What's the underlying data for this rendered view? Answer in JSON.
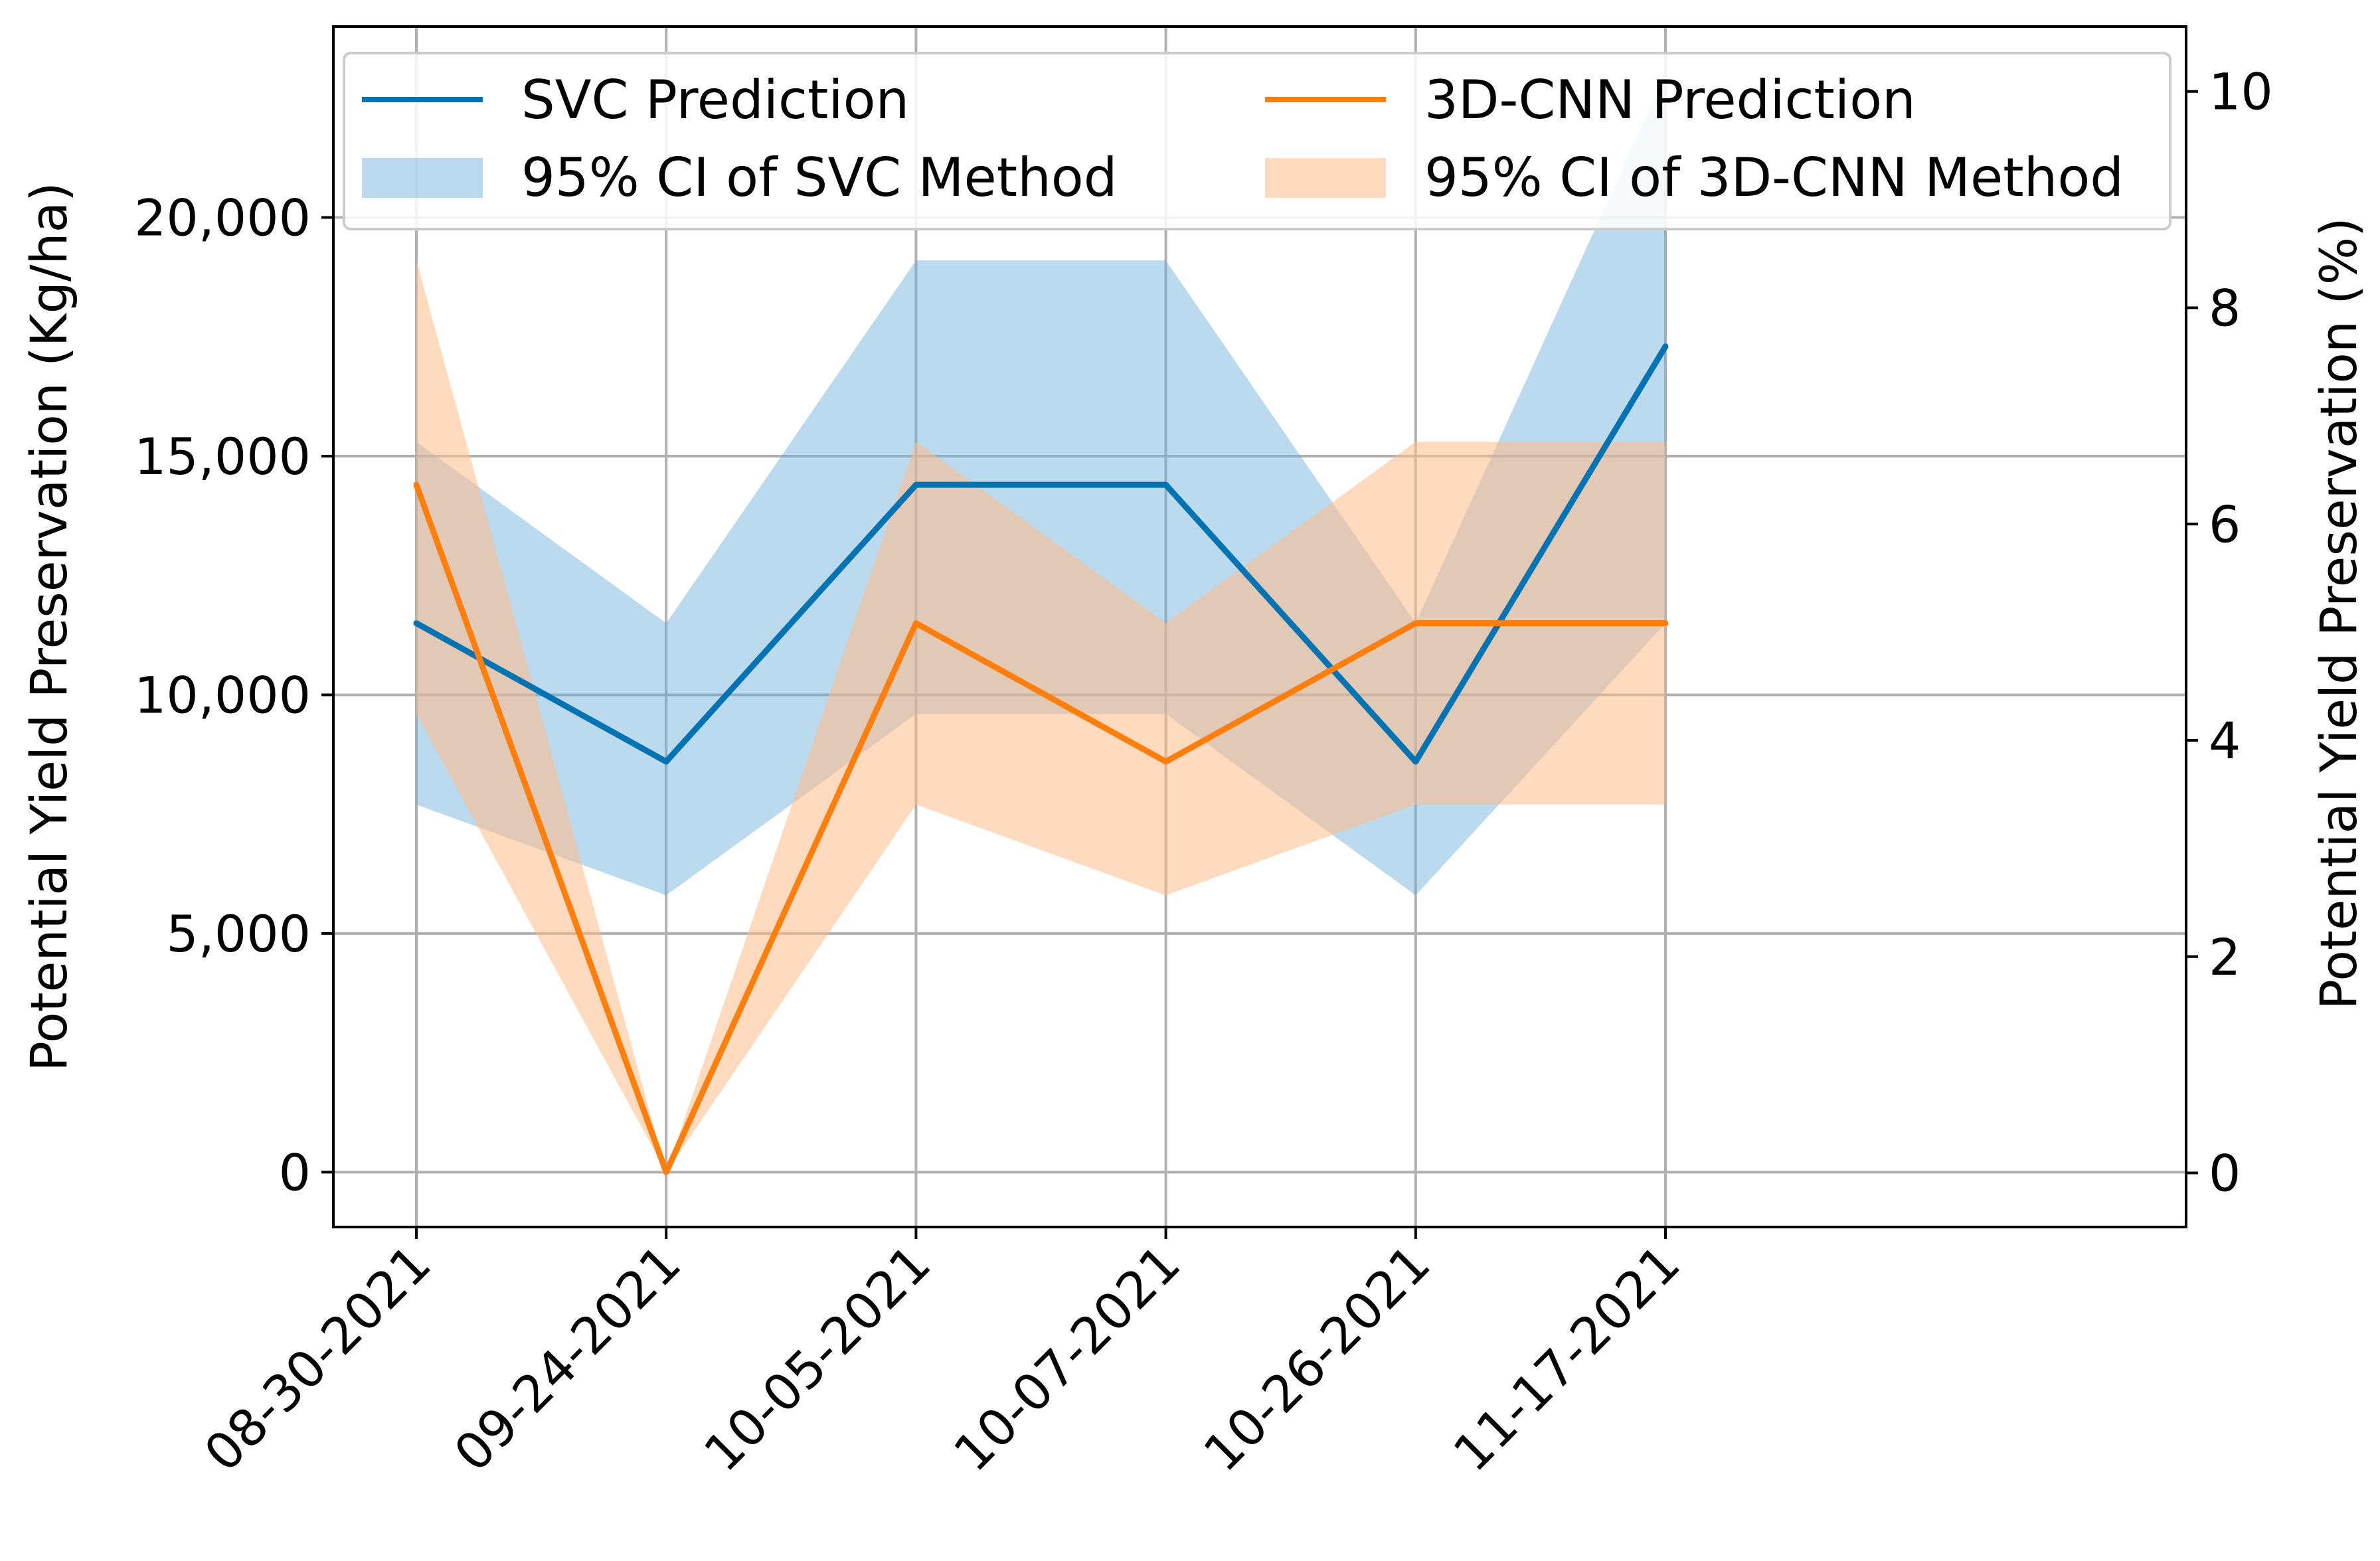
{
  "chart_data": {
    "type": "line",
    "categories": [
      "08-30-2021",
      "09-24-2021",
      "10-05-2021",
      "10-07-2021",
      "10-26-2021",
      "11-17-2021"
    ],
    "series": [
      {
        "name": "SVC Prediction",
        "color": "#0173b2",
        "values": [
          11500,
          8600,
          14400,
          14400,
          8600,
          17300
        ]
      },
      {
        "name": "3D-CNN Prediction",
        "color": "#ff7f0e",
        "values": [
          14400,
          0,
          11500,
          8600,
          11500,
          11500
        ]
      }
    ],
    "bands": [
      {
        "name": "95% CI of SVC Method",
        "color": "#6baed6",
        "opacity": 0.45,
        "lower": [
          7700,
          5800,
          9600,
          9600,
          5800,
          11500
        ],
        "upper": [
          15300,
          11500,
          19100,
          19100,
          11500,
          23000
        ]
      },
      {
        "name": "95% CI of 3D-CNN Method",
        "color": "#ffbb88",
        "opacity": 0.55,
        "lower": [
          9600,
          0,
          7700,
          5800,
          7700,
          7700
        ],
        "upper": [
          19100,
          0,
          15300,
          11500,
          15300,
          15300
        ]
      }
    ],
    "ylabel": "Potential Yield Preservation (Kg/ha)",
    "ylim": [
      -1150,
      24000
    ],
    "y_ticks": [
      0,
      5000,
      10000,
      15000,
      20000
    ],
    "y_tick_labels": [
      "0",
      "5,000",
      "10,000",
      "15,000",
      "20,000"
    ],
    "y2label": "Potential Yield Preservation (%)",
    "y2lim": [
      -0.5,
      10.6
    ],
    "y2_ticks": [
      0,
      2,
      4,
      6,
      8,
      10
    ],
    "y2_tick_labels": [
      "0",
      "2",
      "4",
      "6",
      "8",
      "10"
    ],
    "grid": true,
    "legend": {
      "position": "top",
      "entries": [
        "SVC Prediction",
        "3D-CNN Prediction",
        "95% CI of SVC Method",
        "95% CI of 3D-CNN Method"
      ]
    }
  }
}
